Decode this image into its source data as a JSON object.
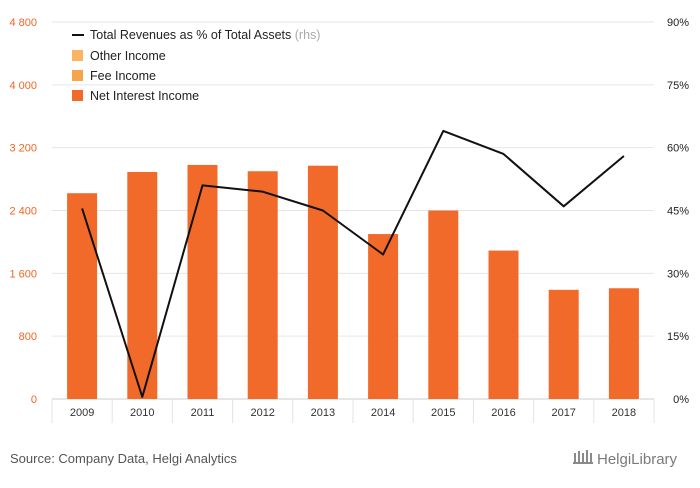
{
  "chart_data": {
    "type": "bar",
    "categories": [
      "2009",
      "2010",
      "2011",
      "2012",
      "2013",
      "2014",
      "2015",
      "2016",
      "2017",
      "2018"
    ],
    "series": [
      {
        "name": "Other Income",
        "kind": "bar",
        "color": "#fdb462",
        "values": [
          0,
          0,
          0,
          0,
          0,
          0,
          0,
          0,
          0,
          0
        ]
      },
      {
        "name": "Fee Income",
        "kind": "bar",
        "color": "#f7a54a",
        "values": [
          0,
          0,
          0,
          0,
          0,
          0,
          0,
          0,
          0,
          0
        ]
      },
      {
        "name": "Net Interest Income",
        "kind": "bar",
        "color": "#f26a2a",
        "values": [
          2620,
          2890,
          2980,
          2900,
          2970,
          2100,
          2400,
          1890,
          1390,
          1410
        ]
      },
      {
        "name": "Total Revenues as % of Total Assets",
        "suffix": "(rhs)",
        "kind": "line",
        "axis": "right",
        "color": "#111111",
        "values": [
          45.5,
          0.5,
          51,
          49.5,
          45,
          34.5,
          64,
          58.5,
          46,
          58
        ]
      }
    ],
    "y_left": {
      "min": 0,
      "max": 4800,
      "ticks": [
        "0",
        "800",
        "1 600",
        "2 400",
        "3 200",
        "4 000",
        "4 800"
      ],
      "tick_values": [
        0,
        800,
        1600,
        2400,
        3200,
        4000,
        4800
      ]
    },
    "y_right": {
      "min": 0,
      "max": 90,
      "ticks": [
        "0%",
        "15%",
        "30%",
        "45%",
        "60%",
        "75%",
        "90%"
      ],
      "tick_values": [
        0,
        15,
        30,
        45,
        60,
        75,
        90
      ]
    },
    "legend_order": [
      "Total Revenues as % of Total Assets",
      "Other Income",
      "Fee Income",
      "Net Interest Income"
    ],
    "legend_position": "top-left",
    "title": "",
    "xlabel": "",
    "ylabel": ""
  },
  "footer": {
    "source": "Source: Company Data, Helgi Analytics",
    "brand": "HelgiLibrary"
  },
  "colors": {
    "left_axis_text": "#f26522",
    "grid": "#e6e6e6"
  }
}
